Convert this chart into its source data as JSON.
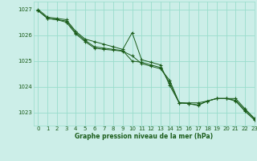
{
  "background_color": "#cceee8",
  "grid_color": "#99ddcc",
  "line_color": "#1a5c1a",
  "xlabel": "Graphe pression niveau de la mer (hPa)",
  "xlim": [
    -0.5,
    23
  ],
  "ylim": [
    1022.5,
    1027.3
  ],
  "yticks": [
    1023,
    1024,
    1025,
    1026,
    1027
  ],
  "xticks": [
    0,
    1,
    2,
    3,
    4,
    5,
    6,
    7,
    8,
    9,
    10,
    11,
    12,
    13,
    14,
    15,
    16,
    17,
    18,
    19,
    20,
    21,
    22,
    23
  ],
  "series": [
    [
      1027.0,
      1026.7,
      1026.65,
      1026.6,
      1026.15,
      1025.85,
      1025.75,
      1025.65,
      1025.55,
      1025.45,
      1026.1,
      1025.05,
      1024.95,
      1024.85,
      1024.05,
      1023.38,
      1023.38,
      1023.38,
      1023.45,
      1023.55,
      1023.55,
      1023.55,
      1023.15,
      1022.78
    ],
    [
      1026.95,
      1026.65,
      1026.6,
      1026.55,
      1026.1,
      1025.8,
      1025.55,
      1025.5,
      1025.45,
      1025.4,
      1025.0,
      1024.95,
      1024.85,
      1024.75,
      1024.15,
      1023.38,
      1023.35,
      1023.3,
      1023.45,
      1023.55,
      1023.55,
      1023.48,
      1023.1,
      1022.75
    ],
    [
      1026.95,
      1026.65,
      1026.6,
      1026.5,
      1026.05,
      1025.75,
      1025.5,
      1025.45,
      1025.42,
      1025.38,
      1025.2,
      1024.9,
      1024.8,
      1024.7,
      1024.25,
      1023.38,
      1023.35,
      1023.28,
      1023.45,
      1023.55,
      1023.55,
      1023.45,
      1023.05,
      1022.72
    ]
  ]
}
